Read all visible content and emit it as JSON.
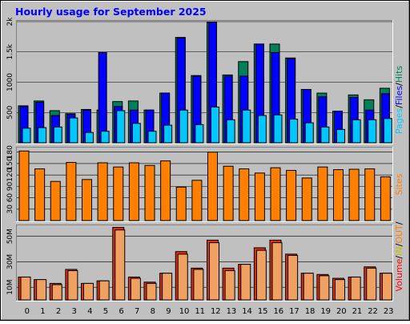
{
  "title": "Hourly usage for September 2025",
  "colors": {
    "background": "#c0c0c0",
    "plot": "#c0c0c0",
    "title": "#0000ff",
    "pages": "#00c8ff",
    "files": "#0000ff",
    "hits": "#00805a",
    "sites": "#ff8000",
    "volume": "#ff0000",
    "in": "#c0c000",
    "out": "#ff8000",
    "volume_fill": "#e03010",
    "volume_out_fill": "#f0a060"
  },
  "chart_data": [
    {
      "type": "bar",
      "title": "Hourly usage for September 2025",
      "categories": [
        "0",
        "1",
        "2",
        "3",
        "4",
        "5",
        "6",
        "7",
        "8",
        "9",
        "10",
        "11",
        "12",
        "13",
        "14",
        "15",
        "16",
        "17",
        "18",
        "19",
        "20",
        "21",
        "22",
        "23"
      ],
      "ylim": [
        0,
        2000
      ],
      "y_tick_labels": [
        "500",
        "1000",
        "1.5k",
        "2k"
      ],
      "y_ticks": [
        500,
        1000,
        1500,
        2000
      ],
      "legend": [
        {
          "text": "Pages",
          "color": "#00c8ff"
        },
        {
          "text": "/",
          "color": "#000000"
        },
        {
          "text": "Files",
          "color": "#0000ff"
        },
        {
          "text": "/",
          "color": "#000000"
        },
        {
          "text": "Hits",
          "color": "#00805a"
        }
      ],
      "series": [
        {
          "name": "Hits",
          "values": [
            610,
            690,
            530,
            480,
            550,
            540,
            680,
            690,
            540,
            820,
            1740,
            1110,
            1990,
            1120,
            1340,
            1630,
            1630,
            1400,
            880,
            820,
            520,
            790,
            710,
            900
          ]
        },
        {
          "name": "Files",
          "values": [
            600,
            670,
            450,
            470,
            540,
            1490,
            600,
            540,
            540,
            820,
            1730,
            1100,
            1990,
            1100,
            1100,
            1630,
            1490,
            1390,
            880,
            760,
            520,
            750,
            540,
            810
          ]
        },
        {
          "name": "Pages",
          "values": [
            240,
            250,
            260,
            410,
            170,
            190,
            530,
            320,
            190,
            290,
            540,
            300,
            590,
            380,
            540,
            450,
            460,
            390,
            330,
            260,
            220,
            380,
            380,
            400
          ]
        }
      ]
    },
    {
      "type": "bar",
      "categories": [
        "0",
        "1",
        "2",
        "3",
        "4",
        "5",
        "6",
        "7",
        "8",
        "9",
        "10",
        "11",
        "12",
        "13",
        "14",
        "15",
        "16",
        "17",
        "18",
        "19",
        "20",
        "21",
        "22",
        "23"
      ],
      "ylim": [
        0,
        190
      ],
      "y_tick_labels": [
        "30",
        "60",
        "90",
        "120",
        "150",
        "180"
      ],
      "y_ticks": [
        30,
        60,
        90,
        120,
        150,
        180
      ],
      "legend": [
        {
          "text": "Sites",
          "color": "#ff8000"
        }
      ],
      "series": [
        {
          "name": "Sites",
          "values": [
            183,
            136,
            103,
            153,
            108,
            152,
            141,
            152,
            145,
            157,
            88,
            106,
            180,
            143,
            136,
            125,
            139,
            132,
            112,
            141,
            134,
            135,
            136,
            115
          ]
        }
      ]
    },
    {
      "type": "bar",
      "categories": [
        "0",
        "1",
        "2",
        "3",
        "4",
        "5",
        "6",
        "7",
        "8",
        "9",
        "10",
        "11",
        "12",
        "13",
        "14",
        "15",
        "16",
        "17",
        "18",
        "19",
        "20",
        "21",
        "22",
        "23"
      ],
      "ylim": [
        0,
        58
      ],
      "y_tick_labels": [
        "10M",
        "30M",
        "50M"
      ],
      "y_ticks": [
        10,
        30,
        50
      ],
      "legend": [
        {
          "text": "Volume",
          "color": "#ff0000"
        },
        {
          "text": "/",
          "color": "#000000"
        },
        {
          "text": "IN",
          "color": "#c0c000"
        },
        {
          "text": "/",
          "color": "#000000"
        },
        {
          "text": "OUT",
          "color": "#ff8000"
        },
        {
          "text": "/",
          "color": "#000000"
        }
      ],
      "series": [
        {
          "name": "Volume",
          "values": [
            18,
            16,
            13,
            24,
            13,
            15,
            57,
            18,
            14,
            21,
            38,
            25,
            47,
            25,
            28,
            41,
            47,
            36,
            21,
            20,
            17,
            18,
            26,
            21
          ]
        },
        {
          "name": "OUT",
          "values": [
            18,
            16,
            12,
            23,
            13,
            15,
            55,
            17,
            13,
            21,
            36,
            24,
            45,
            23,
            28,
            39,
            45,
            35,
            21,
            19,
            16,
            18,
            25,
            21
          ]
        }
      ]
    }
  ]
}
